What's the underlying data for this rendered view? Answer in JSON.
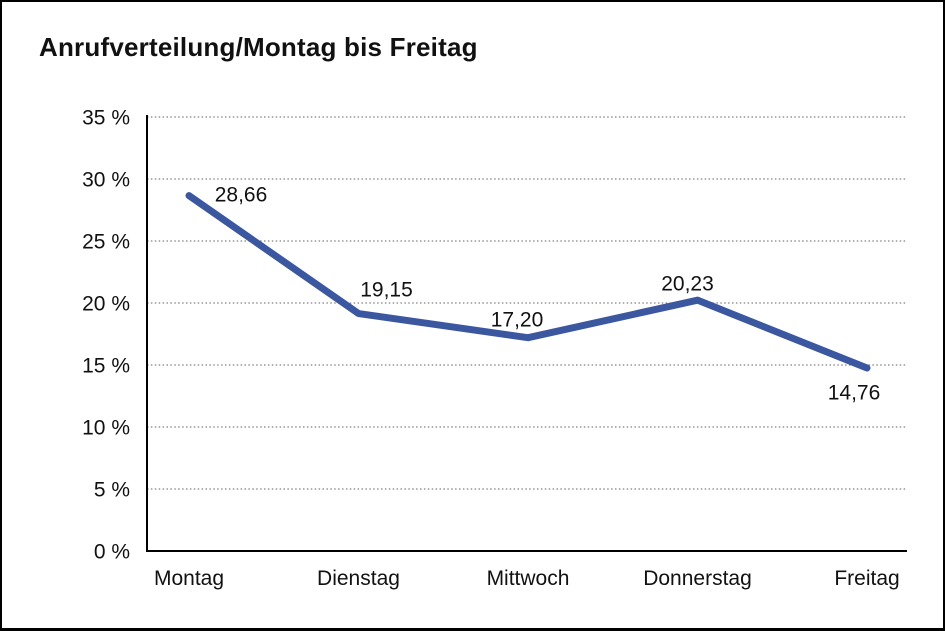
{
  "frame": {
    "title": "Anrufverteilung/Montag bis Freitag"
  },
  "chart_data": {
    "type": "line",
    "title": "Anrufverteilung/Montag bis Freitag",
    "categories": [
      "Montag",
      "Dienstag",
      "Mittwoch",
      "Donnerstag",
      "Freitag"
    ],
    "series": [
      {
        "name": "Anrufverteilung",
        "values": [
          28.66,
          19.15,
          17.2,
          20.23,
          14.76
        ]
      }
    ],
    "point_labels": [
      "28,66",
      "19,15",
      "17,20",
      "20,23",
      "14,76"
    ],
    "xlabel": "",
    "ylabel": "",
    "ylim": [
      0,
      35
    ],
    "y_tick_step": 5,
    "y_tick_labels": [
      "0 %",
      "5 %",
      "10 %",
      "15 %",
      "20 %",
      "25 %",
      "30 %",
      "35 %"
    ],
    "grid": "horizontal-dotted",
    "legend": "none",
    "colors": {
      "line": "#3A57A0",
      "axis": "#000000",
      "gridline": "#808080",
      "text": "#111111",
      "background": "#FFFFFF",
      "border": "#000000"
    }
  }
}
